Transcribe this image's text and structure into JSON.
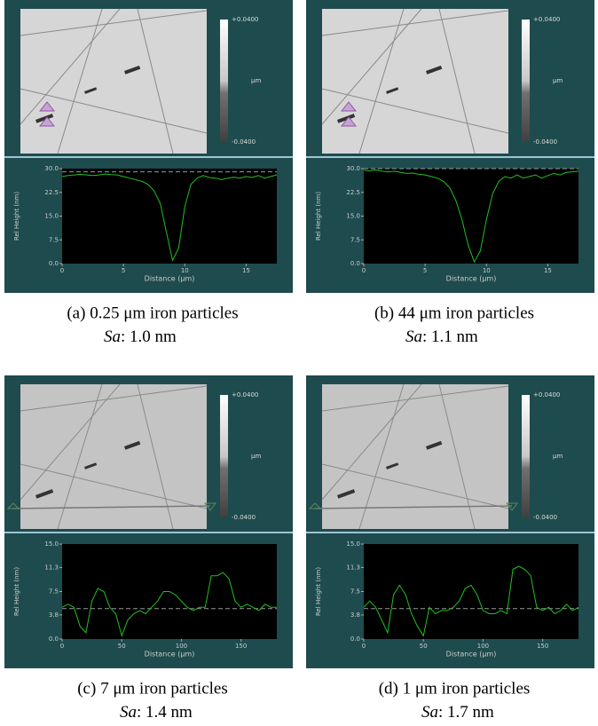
{
  "chart_data": [
    {
      "type": "line",
      "ylabel": "Rel Height (nm)",
      "xlabel": "Distance (µm)",
      "colorbar": {
        "max": "+0.0400",
        "unit": "µm",
        "min": "-0.0400"
      },
      "xlim": [
        0,
        17.5
      ],
      "xticks": [
        0,
        5,
        10,
        15
      ],
      "ylim": [
        0,
        30
      ],
      "yticks": [
        {
          "value": 0,
          "label": "0.0"
        },
        7.5,
        {
          "value": 15,
          "label": "15.0"
        },
        22.5,
        {
          "value": 30,
          "label": "30.0"
        }
      ],
      "x": [
        0,
        0.5,
        1,
        1.5,
        2,
        2.5,
        3,
        3.5,
        4,
        4.5,
        5,
        5.5,
        6,
        6.5,
        7,
        7.5,
        8,
        8.5,
        9,
        9.5,
        10,
        10.5,
        11,
        11.5,
        12,
        12.5,
        13,
        13.5,
        14,
        14.5,
        15,
        15.5,
        16,
        16.5,
        17,
        17.5
      ],
      "series": [
        {
          "color": "#22c020",
          "values": [
            27.5,
            27.8,
            28,
            28.2,
            28,
            27.8,
            28,
            28.3,
            28.1,
            28,
            27.5,
            27,
            26.5,
            26,
            25,
            23,
            19,
            10,
            1,
            5,
            18,
            25,
            27,
            27.8,
            27.2,
            27,
            26.5,
            27,
            27.3,
            27,
            27.5,
            27.2,
            27.8,
            27,
            27.5,
            28
          ]
        }
      ],
      "reference_line": 29,
      "caption": "(a) 0.25 μm iron particles",
      "subcaption": {
        "label": "Sa",
        "text": ": 1.0 nm"
      }
    },
    {
      "type": "line",
      "ylabel": "Rel Height (nm)",
      "xlabel": "Distance (µm)",
      "colorbar": {
        "max": "+0.0400",
        "unit": "µm",
        "min": "-0.0400"
      },
      "xlim": [
        0,
        17.5
      ],
      "xticks": [
        0,
        5,
        10,
        15
      ],
      "ylim": [
        0,
        30
      ],
      "yticks": [
        {
          "value": 0,
          "label": "0.0"
        },
        7.5,
        {
          "value": 15,
          "label": "15.0"
        },
        22.5,
        {
          "value": 30,
          "label": "30.0"
        }
      ],
      "x": [
        0,
        0.5,
        1,
        1.5,
        2,
        2.5,
        3,
        3.5,
        4,
        4.5,
        5,
        5.5,
        6,
        6.5,
        7,
        7.5,
        8,
        8.5,
        9,
        9.5,
        10,
        10.5,
        11,
        11.5,
        12,
        12.5,
        13,
        13.5,
        14,
        14.5,
        15,
        15.5,
        16,
        16.5,
        17,
        17.5
      ],
      "series": [
        {
          "color": "#22c020",
          "values": [
            29.5,
            29.3,
            29.6,
            29.2,
            29,
            29.2,
            28.8,
            28.5,
            28.6,
            28.2,
            28,
            27.5,
            27,
            26,
            24,
            20,
            14,
            6,
            0.5,
            4,
            14,
            22,
            26,
            27.5,
            27,
            28,
            27,
            27.5,
            28,
            27,
            27.8,
            28.5,
            28,
            28.8,
            29,
            29.2
          ]
        }
      ],
      "reference_line": 30,
      "caption": "(b) 44 μm iron particles",
      "subcaption": {
        "label": "Sa",
        "text": ": 1.1 nm"
      }
    },
    {
      "type": "line",
      "ylabel": "Rel Height (nm)",
      "xlabel": "Distance (µm)",
      "colorbar": {
        "max": "+0.0400",
        "unit": "µm",
        "min": "-0.0400"
      },
      "xlim": [
        0,
        180
      ],
      "xticks": [
        0,
        50,
        100,
        150
      ],
      "ylim": [
        0,
        15
      ],
      "yticks": [
        {
          "value": 0,
          "label": "0.0"
        },
        3.8,
        7.5,
        11.3,
        {
          "value": 15,
          "label": "15.0"
        }
      ],
      "x": [
        0,
        5,
        10,
        15,
        20,
        25,
        30,
        35,
        40,
        45,
        50,
        55,
        60,
        65,
        70,
        75,
        80,
        85,
        90,
        95,
        100,
        105,
        110,
        115,
        120,
        125,
        130,
        135,
        140,
        145,
        150,
        155,
        160,
        165,
        170,
        175,
        180
      ],
      "series": [
        {
          "color": "#22c020",
          "values": [
            5,
            5.5,
            5,
            2,
            1,
            6,
            8,
            7.5,
            5,
            4,
            0.5,
            3,
            4,
            4.5,
            4,
            5,
            6,
            7.5,
            7.5,
            7,
            6,
            5,
            4.5,
            5,
            5,
            10,
            10,
            10.5,
            9.5,
            6,
            5,
            5.5,
            5,
            4.5,
            5.5,
            5,
            5
          ]
        }
      ],
      "reference_line": 4.8,
      "caption": "(c) 7 μm iron particles",
      "subcaption": {
        "label": "Sa",
        "text": ": 1.4 nm"
      }
    },
    {
      "type": "line",
      "ylabel": "Rel Height (nm)",
      "xlabel": "Distance (µm)",
      "colorbar": {
        "max": "+0.0400",
        "unit": "µm",
        "min": "-0.0400"
      },
      "xlim": [
        0,
        180
      ],
      "xticks": [
        0,
        50,
        100,
        150
      ],
      "ylim": [
        0,
        15
      ],
      "yticks": [
        {
          "value": 0,
          "label": "0.0"
        },
        3.8,
        7.5,
        11.3,
        {
          "value": 15,
          "label": "15.0"
        }
      ],
      "x": [
        0,
        5,
        10,
        15,
        20,
        25,
        30,
        35,
        40,
        45,
        50,
        55,
        60,
        65,
        70,
        75,
        80,
        85,
        90,
        95,
        100,
        105,
        110,
        115,
        120,
        125,
        130,
        135,
        140,
        145,
        150,
        155,
        160,
        165,
        170,
        175,
        180
      ],
      "series": [
        {
          "color": "#22c020",
          "values": [
            5,
            6,
            5,
            3,
            1,
            7,
            8.5,
            7,
            4,
            2,
            0.5,
            5,
            4,
            4.5,
            4.5,
            5,
            6,
            8,
            8.5,
            7,
            4.5,
            4,
            4,
            4.5,
            4,
            11,
            11.5,
            11,
            10,
            5,
            4.5,
            5,
            4,
            4.5,
            5.5,
            4.5,
            5
          ]
        }
      ],
      "reference_line": 4.8,
      "caption": "(d) 1 μm iron particles",
      "subcaption": {
        "label": "Sa",
        "text": ": 1.7 nm"
      }
    }
  ]
}
